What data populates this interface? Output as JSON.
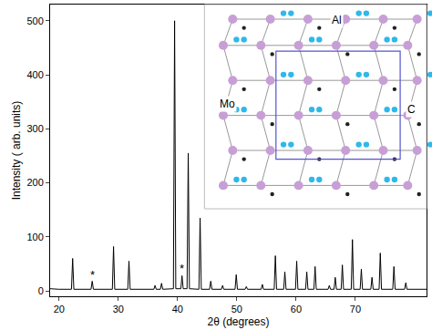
{
  "chart_data": {
    "type": "line",
    "x_label": "2θ (degrees)",
    "y_label": "Intensity ( arb. units)",
    "color": "#000000",
    "x": [
      18.5,
      20.0,
      22.1,
      22.3,
      22.5,
      25.4,
      25.6,
      25.8,
      29.0,
      29.2,
      29.4,
      31.6,
      31.8,
      32.0,
      36.0,
      36.2,
      36.4,
      37.1,
      37.3,
      37.5,
      39.3,
      39.5,
      39.7,
      40.55,
      40.75,
      40.95,
      41.6,
      41.8,
      42.0,
      43.6,
      43.8,
      44.0,
      45.4,
      45.6,
      45.8,
      47.4,
      47.6,
      47.8,
      49.7,
      49.9,
      50.1,
      51.4,
      51.6,
      51.8,
      54.1,
      54.3,
      54.5,
      56.3,
      56.5,
      56.7,
      57.9,
      58.1,
      58.3,
      59.9,
      60.1,
      60.3,
      61.6,
      61.8,
      62.0,
      63.0,
      63.2,
      63.4,
      65.4,
      65.6,
      65.8,
      66.4,
      66.6,
      66.8,
      67.6,
      67.8,
      68.0,
      69.3,
      69.5,
      69.7,
      70.8,
      71.0,
      71.2,
      72.6,
      72.8,
      73.0,
      74.0,
      74.2,
      74.4,
      76.3,
      76.5,
      76.7,
      78.3,
      78.5,
      78.7,
      82.0
    ],
    "values": [
      4,
      3,
      3,
      60,
      3,
      3,
      18,
      3,
      3,
      82,
      3,
      3,
      55,
      3,
      3,
      10,
      3,
      3,
      14,
      3,
      4,
      500,
      4,
      4,
      28,
      4,
      4,
      255,
      4,
      3,
      135,
      3,
      3,
      18,
      3,
      3,
      10,
      3,
      3,
      30,
      3,
      3,
      8,
      3,
      3,
      12,
      3,
      3,
      65,
      3,
      3,
      35,
      3,
      3,
      55,
      3,
      3,
      35,
      3,
      3,
      45,
      3,
      3,
      10,
      3,
      3,
      25,
      3,
      3,
      48,
      3,
      3,
      95,
      3,
      3,
      40,
      3,
      3,
      25,
      3,
      3,
      70,
      3,
      3,
      45,
      3,
      3,
      15,
      3,
      3
    ],
    "xlim": [
      18.5,
      82
    ],
    "xticks": [
      20,
      30,
      40,
      50,
      60,
      70
    ],
    "ylim": [
      -10,
      530
    ],
    "yticks": [
      0,
      100,
      200,
      300,
      400,
      500
    ],
    "annotations": [
      {
        "text": "*",
        "x": 25.6,
        "y": 30
      },
      {
        "text": "*",
        "x": 40.75,
        "y": 42
      }
    ],
    "inset": {
      "labels": [
        "Al",
        "Mo",
        "C"
      ]
    }
  }
}
